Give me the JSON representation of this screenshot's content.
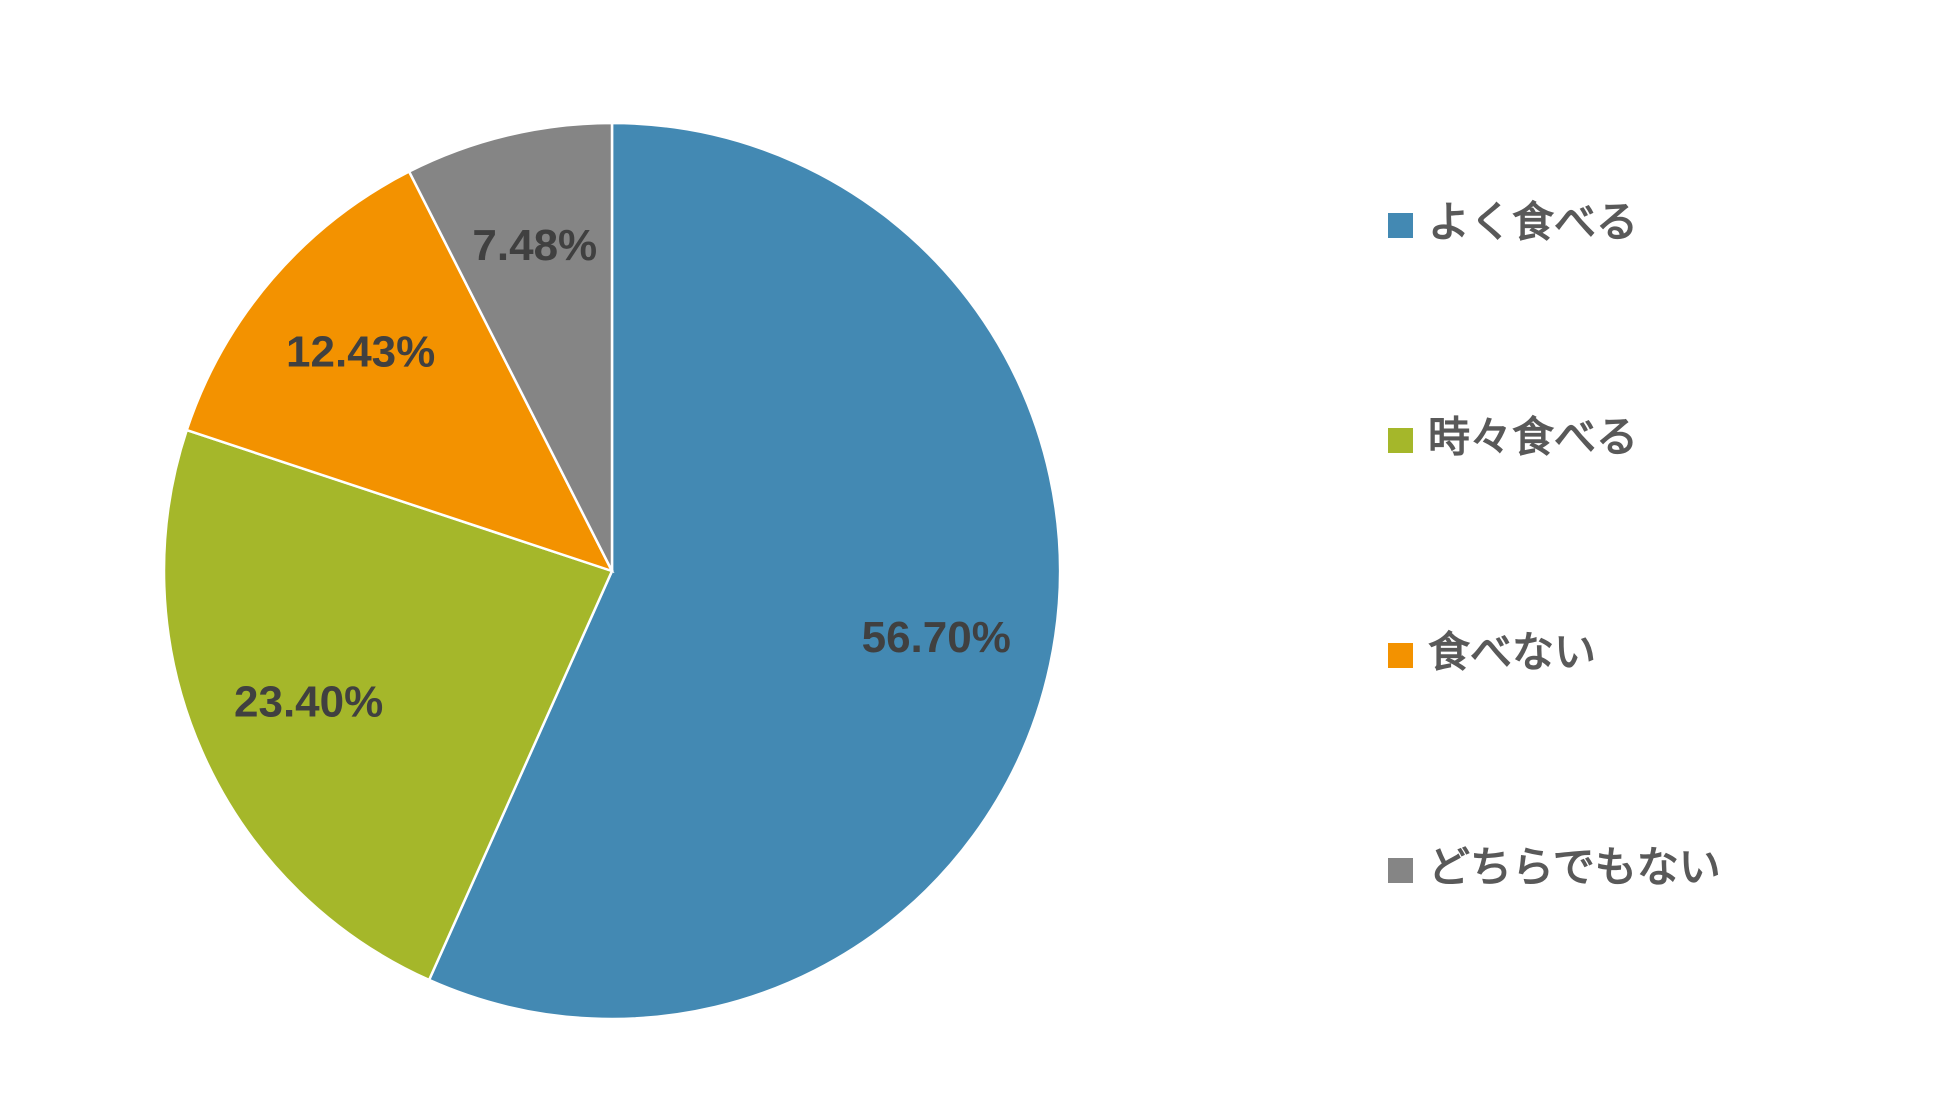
{
  "chart_data": {
    "type": "pie",
    "categories": [
      "よく食べる",
      "時々食べる",
      "食べない",
      "どちらでもない"
    ],
    "values": [
      56.7,
      23.4,
      12.43,
      7.48
    ],
    "value_labels": [
      "56.70%",
      "23.40%",
      "12.43%",
      "7.48%"
    ],
    "colors": [
      "#4389b3",
      "#a5b72a",
      "#f39200",
      "#858585"
    ],
    "legend": "right"
  }
}
